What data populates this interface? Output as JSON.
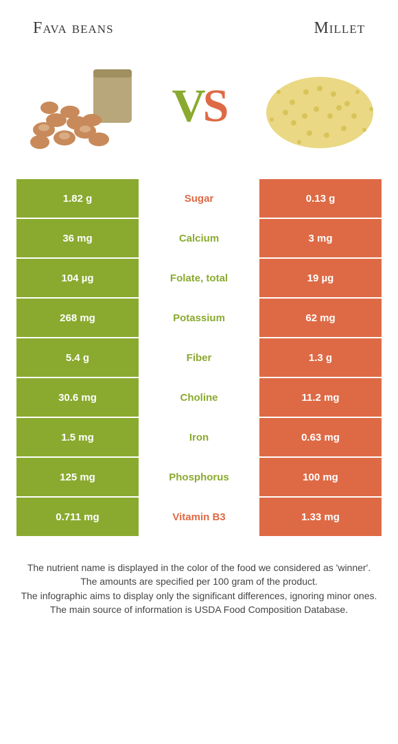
{
  "colors": {
    "left_food": "#8aaa2f",
    "right_food": "#de6a45",
    "row_gap": "#ffffff",
    "text_dark": "#333333"
  },
  "header": {
    "left_title": "Fava beans",
    "right_title": "Millet",
    "vs_v": "V",
    "vs_s": "S"
  },
  "illustrations": {
    "left": {
      "name": "fava-beans-illustration",
      "base": "#c88a5a",
      "accent": "#b8a77a"
    },
    "right": {
      "name": "millet-illustration",
      "base": "#e8d57a",
      "accent": "#d9c45a"
    }
  },
  "rows": [
    {
      "nutrient": "Sugar",
      "left": "1.82 g",
      "right": "0.13 g",
      "winner": "right"
    },
    {
      "nutrient": "Calcium",
      "left": "36 mg",
      "right": "3 mg",
      "winner": "left"
    },
    {
      "nutrient": "Folate, total",
      "left": "104 µg",
      "right": "19 µg",
      "winner": "left"
    },
    {
      "nutrient": "Potassium",
      "left": "268 mg",
      "right": "62 mg",
      "winner": "left"
    },
    {
      "nutrient": "Fiber",
      "left": "5.4 g",
      "right": "1.3 g",
      "winner": "left"
    },
    {
      "nutrient": "Choline",
      "left": "30.6 mg",
      "right": "11.2 mg",
      "winner": "left"
    },
    {
      "nutrient": "Iron",
      "left": "1.5 mg",
      "right": "0.63 mg",
      "winner": "left"
    },
    {
      "nutrient": "Phosphorus",
      "left": "125 mg",
      "right": "100 mg",
      "winner": "left"
    },
    {
      "nutrient": "Vitamin B3",
      "left": "0.711 mg",
      "right": "1.33 mg",
      "winner": "right"
    }
  ],
  "footer": {
    "l1": "The nutrient name is displayed in the color of the food we considered as 'winner'.",
    "l2": "The amounts are specified per 100 gram of the product.",
    "l3": "The infographic aims to display only the significant differences, ignoring minor ones.",
    "l4": "The main source of information is USDA Food Composition Database."
  }
}
